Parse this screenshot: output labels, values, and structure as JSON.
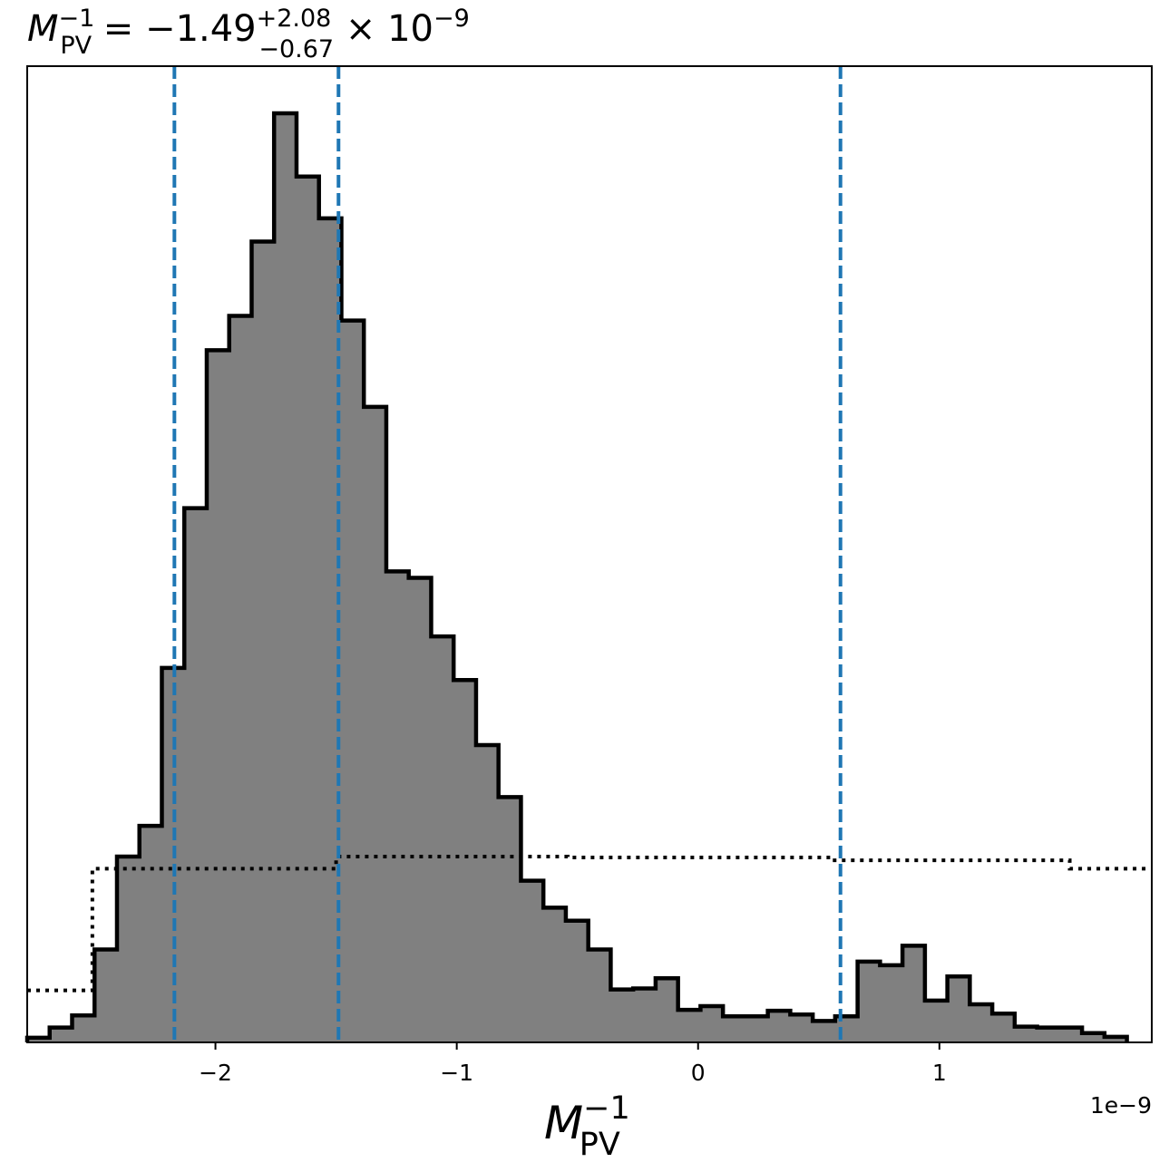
{
  "chart_data": {
    "type": "histogram",
    "title": {
      "symbol": "M",
      "symbol_sup": "−1",
      "symbol_sub": "PV",
      "equals": " = ",
      "value": "−1.49",
      "err_plus": "+2.08",
      "err_minus": "−0.67",
      "times": " × 10",
      "exp": "−9"
    },
    "xlabel": {
      "symbol": "M",
      "sup": "−1",
      "sub": "PV"
    },
    "x_offset_text": "1e−9",
    "xlim": [
      -2.78,
      1.88
    ],
    "ylim": [
      0,
      1.0
    ],
    "xticks": [
      {
        "value": -2,
        "label": "−2"
      },
      {
        "value": -1,
        "label": "−1"
      },
      {
        "value": 0,
        "label": "0"
      },
      {
        "value": 1,
        "label": "1"
      }
    ],
    "bin_edges": [
      -2.78,
      -2.687,
      -2.594,
      -2.501,
      -2.408,
      -2.315,
      -2.222,
      -2.129,
      -2.036,
      -1.943,
      -1.85,
      -1.757,
      -1.664,
      -1.571,
      -1.478,
      -1.385,
      -1.292,
      -1.199,
      -1.106,
      -1.013,
      -0.92,
      -0.827,
      -0.734,
      -0.641,
      -0.548,
      -0.455,
      -0.362,
      -0.269,
      -0.176,
      -0.083,
      0.01,
      0.103,
      0.196,
      0.289,
      0.382,
      0.475,
      0.568,
      0.661,
      0.754,
      0.847,
      0.94,
      1.033,
      1.126,
      1.219,
      1.312,
      1.405,
      1.498,
      1.591,
      1.684,
      1.777
    ],
    "counts": [
      0.005,
      0.016,
      0.029,
      0.1,
      0.2,
      0.233,
      0.403,
      0.575,
      0.745,
      0.782,
      0.862,
      1.0,
      0.932,
      0.887,
      0.777,
      0.684,
      0.507,
      0.5,
      0.437,
      0.39,
      0.32,
      0.264,
      0.174,
      0.145,
      0.131,
      0.1,
      0.057,
      0.058,
      0.069,
      0.035,
      0.039,
      0.028,
      0.028,
      0.034,
      0.03,
      0.023,
      0.028,
      0.087,
      0.083,
      0.104,
      0.045,
      0.071,
      0.041,
      0.031,
      0.017,
      0.016,
      0.016,
      0.01,
      0.006
    ],
    "hist_fill": "#808080",
    "hist_edge": "#000000",
    "prior": {
      "style": "dotted",
      "color": "#000000",
      "steps": [
        {
          "x0": -2.78,
          "x1": -2.51,
          "y": 0.056
        },
        {
          "x0": -2.51,
          "x1": -1.5,
          "y": 0.187
        },
        {
          "x0": -1.5,
          "x1": -0.54,
          "y": 0.2
        },
        {
          "x0": -0.54,
          "x1": 0.55,
          "y": 0.199
        },
        {
          "x0": 0.55,
          "x1": 1.54,
          "y": 0.196
        },
        {
          "x0": 1.54,
          "x1": 1.88,
          "y": 0.187
        }
      ]
    },
    "vlines": {
      "style": "dashed",
      "color": "#1f77b4",
      "values": [
        -2.17,
        -1.49,
        0.59
      ]
    }
  }
}
